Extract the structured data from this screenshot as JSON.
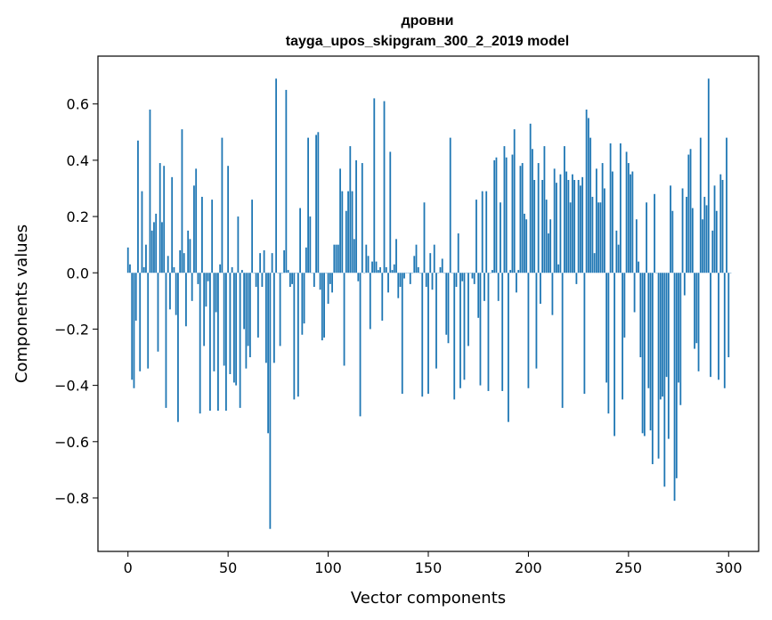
{
  "chart_data": {
    "type": "bar",
    "title": "дровни",
    "subtitle": "tayga_upos_skipgram_300_2_2019 model",
    "xlabel": "Vector components",
    "ylabel": "Components values",
    "xlim": [
      -15,
      315
    ],
    "ylim": [
      -0.99,
      0.77
    ],
    "xticks": [
      0,
      50,
      100,
      150,
      200,
      250,
      300
    ],
    "yticks": [
      -0.8,
      -0.6,
      -0.4,
      -0.2,
      0.0,
      0.2,
      0.4,
      0.6
    ],
    "ytick_labels": [
      "−0.8",
      "−0.6",
      "−0.4",
      "−0.2",
      "0.0",
      "0.2",
      "0.4",
      "0.6"
    ],
    "grid": false,
    "color": "#1f77b4",
    "values": [
      0.09,
      0.03,
      -0.38,
      -0.41,
      -0.17,
      0.47,
      -0.35,
      0.29,
      0.02,
      0.1,
      -0.34,
      0.58,
      0.15,
      0.18,
      0.21,
      -0.28,
      0.39,
      0.18,
      0.38,
      -0.48,
      0.06,
      -0.13,
      0.34,
      0.02,
      -0.15,
      -0.53,
      0.08,
      0.51,
      0.07,
      -0.19,
      0.15,
      0.12,
      -0.1,
      0.31,
      0.37,
      -0.04,
      -0.5,
      0.27,
      -0.26,
      -0.12,
      -0.03,
      -0.49,
      0.26,
      -0.35,
      -0.14,
      -0.49,
      0.03,
      0.48,
      -0.33,
      -0.49,
      0.38,
      -0.36,
      0.02,
      -0.39,
      -0.4,
      0.2,
      -0.48,
      0.01,
      -0.2,
      -0.34,
      -0.26,
      -0.3,
      0.26,
      0.0,
      -0.05,
      -0.23,
      0.07,
      -0.05,
      0.08,
      -0.32,
      -0.57,
      -0.91,
      0.07,
      -0.32,
      0.69,
      0.0,
      -0.26,
      0.0,
      0.08,
      0.65,
      0.01,
      -0.05,
      -0.04,
      -0.45,
      0.0,
      -0.44,
      0.23,
      -0.22,
      -0.18,
      0.09,
      0.48,
      0.2,
      0.0,
      -0.05,
      0.49,
      0.5,
      -0.06,
      -0.24,
      -0.23,
      0.0,
      -0.11,
      -0.04,
      -0.07,
      0.1,
      0.1,
      0.1,
      0.37,
      0.29,
      -0.33,
      0.22,
      0.29,
      0.45,
      0.29,
      0.12,
      0.4,
      -0.03,
      -0.51,
      0.39,
      0.0,
      0.1,
      0.06,
      -0.2,
      0.04,
      0.62,
      0.04,
      0.01,
      0.02,
      -0.17,
      0.61,
      0.02,
      -0.07,
      0.43,
      0.01,
      0.03,
      0.12,
      -0.09,
      -0.05,
      -0.43,
      -0.02,
      0.0,
      0.0,
      -0.04,
      0.0,
      0.06,
      0.1,
      0.02,
      0.0,
      -0.44,
      0.25,
      -0.05,
      -0.43,
      0.07,
      -0.06,
      0.1,
      -0.34,
      0.0,
      0.02,
      0.05,
      0.0,
      -0.22,
      -0.25,
      0.48,
      0.0,
      -0.45,
      -0.05,
      0.14,
      -0.41,
      -0.03,
      -0.38,
      0.0,
      -0.26,
      0.0,
      -0.02,
      -0.04,
      0.26,
      -0.16,
      -0.4,
      0.29,
      -0.1,
      0.29,
      -0.42,
      0.0,
      0.01,
      0.4,
      0.41,
      -0.1,
      0.25,
      -0.42,
      0.45,
      0.41,
      -0.53,
      0.01,
      0.42,
      0.51,
      -0.07,
      0.01,
      0.38,
      0.39,
      0.21,
      0.19,
      -0.41,
      0.53,
      0.44,
      0.33,
      -0.34,
      0.39,
      -0.11,
      0.33,
      0.45,
      0.26,
      0.14,
      0.19,
      -0.15,
      0.37,
      0.32,
      0.03,
      0.35,
      -0.48,
      0.45,
      0.36,
      0.33,
      0.25,
      0.35,
      0.33,
      -0.04,
      0.33,
      0.31,
      0.34,
      -0.43,
      0.58,
      0.55,
      0.48,
      0.27,
      0.07,
      0.37,
      0.25,
      0.25,
      0.39,
      0.3,
      -0.39,
      -0.5,
      0.46,
      0.36,
      -0.58,
      0.15,
      0.1,
      0.46,
      -0.45,
      -0.23,
      0.43,
      0.39,
      0.35,
      0.36,
      -0.14,
      0.19,
      0.04,
      -0.3,
      -0.57,
      -0.58,
      0.25,
      -0.41,
      -0.56,
      -0.68,
      0.28,
      0.0,
      -0.66,
      -0.45,
      -0.44,
      -0.76,
      -0.37,
      -0.59,
      0.31,
      0.22,
      -0.81,
      -0.73,
      -0.39,
      -0.47,
      0.3,
      -0.08,
      0.27,
      0.42,
      0.44,
      0.23,
      -0.27,
      -0.25,
      -0.35,
      0.48,
      0.19,
      0.27,
      0.24,
      0.69,
      -0.37,
      0.15,
      0.31,
      0.22,
      -0.38,
      0.35,
      0.33,
      -0.41,
      0.48,
      -0.3,
      0.0
    ]
  }
}
